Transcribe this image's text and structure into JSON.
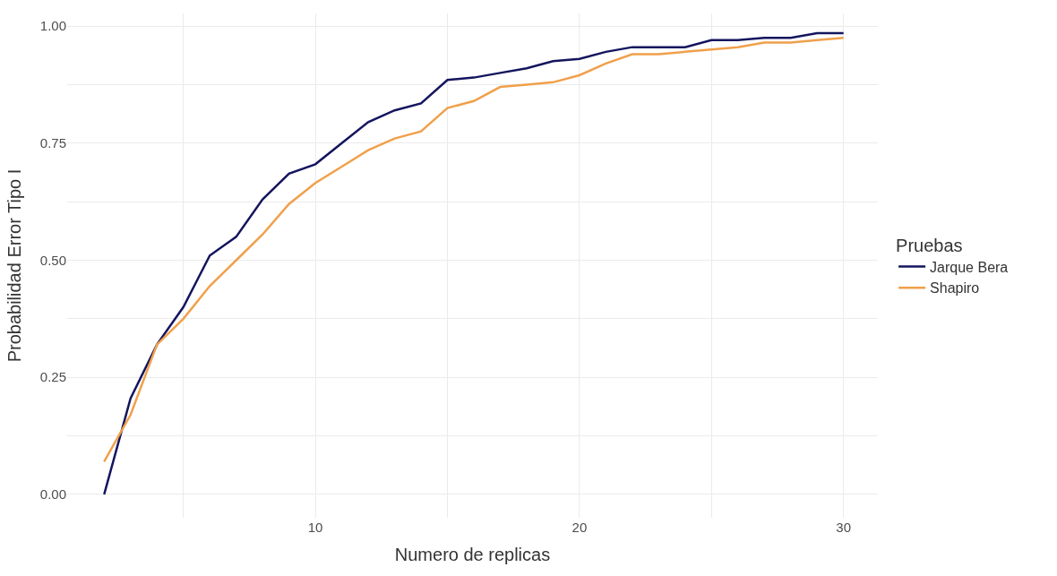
{
  "chart_data": {
    "type": "line",
    "xlabel": "Numero de replicas",
    "ylabel": "Probabilidad Error Tipo I",
    "legend_title": "Pruebas",
    "legend": "right",
    "grid": true,
    "line_style": "solid",
    "x": [
      2,
      3,
      4,
      5,
      6,
      7,
      8,
      9,
      10,
      11,
      12,
      13,
      14,
      15,
      16,
      17,
      18,
      19,
      20,
      21,
      22,
      23,
      24,
      25,
      26,
      27,
      28,
      29,
      30
    ],
    "series": [
      {
        "name": "Jarque Bera",
        "color": "#14155e",
        "values": [
          0,
          0.205,
          0.32,
          0.4,
          0.51,
          0.55,
          0.63,
          0.685,
          0.705,
          0.75,
          0.795,
          0.82,
          0.835,
          0.885,
          0.89,
          0.9,
          0.91,
          0.925,
          0.93,
          0.945,
          0.955,
          0.955,
          0.955,
          0.97,
          0.97,
          0.975,
          0.975,
          0.985,
          0.985
        ]
      },
      {
        "name": "Shapiro",
        "color": "#f0a04b",
        "values": [
          0.07,
          0.17,
          0.32,
          0.375,
          0.445,
          0.5,
          0.555,
          0.62,
          0.665,
          0.7,
          0.735,
          0.76,
          0.775,
          0.825,
          0.84,
          0.87,
          0.875,
          0.88,
          0.895,
          0.92,
          0.94,
          0.94,
          0.945,
          0.95,
          0.955,
          0.965,
          0.965,
          0.97,
          0.975
        ]
      }
    ],
    "xlim": [
      0.6,
      31.3
    ],
    "ylim": [
      -0.05,
      1.027
    ],
    "xticks": [
      {
        "value": 5,
        "label": null
      },
      10,
      {
        "value": 15,
        "label": null
      },
      20,
      {
        "value": 25,
        "label": null
      },
      30
    ],
    "yticks": [
      {
        "value": 0,
        "label": "0.00"
      },
      {
        "value": 0.125,
        "label": null
      },
      {
        "value": 0.25,
        "label": "0.25"
      },
      {
        "value": 0.375,
        "label": null
      },
      {
        "value": 0.5,
        "label": "0.50"
      },
      {
        "value": 0.625,
        "label": null
      },
      {
        "value": 0.75,
        "label": "0.75"
      },
      {
        "value": 0.875,
        "label": null
      },
      {
        "value": 1,
        "label": "1.00"
      }
    ]
  }
}
